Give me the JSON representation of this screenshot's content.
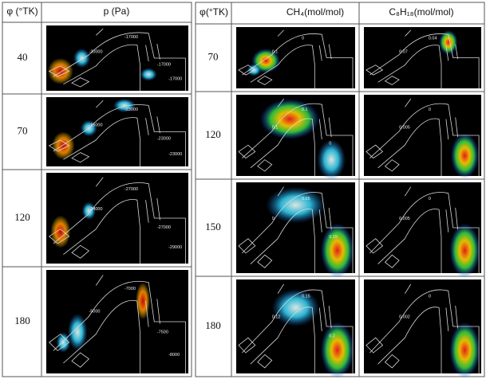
{
  "left_table": {
    "header": [
      "φ (°TK)",
      "p (Pa)"
    ],
    "rows": [
      {
        "angle": 40,
        "contour_labels": [
          "-20000",
          "-17000",
          "-17000",
          "-17000"
        ]
      },
      {
        "angle": 70,
        "contour_labels": [
          "-15000",
          "-23000",
          "-23000",
          "-23000"
        ]
      },
      {
        "angle": 120,
        "contour_labels": [
          "-24000",
          "-27000",
          "-27000",
          "-29000"
        ]
      },
      {
        "angle": 180,
        "contour_labels": [
          "-5000",
          "-7000",
          "-7500",
          "-8000"
        ]
      }
    ]
  },
  "right_table": {
    "header": [
      "φ(°TK)",
      "CH₄(mol/mol)",
      "C₈H₁₈(mol/mol)"
    ],
    "rows": [
      {
        "angle": 70,
        "ch4_labels": [
          "0.1",
          "0"
        ],
        "c8h18_labels": [
          "0.07",
          "0.04"
        ]
      },
      {
        "angle": 120,
        "ch4_labels": [
          "0.1",
          "0.1",
          "0"
        ],
        "c8h18_labels": [
          "0.005",
          "0"
        ]
      },
      {
        "angle": 150,
        "ch4_labels": [
          "0",
          "0.05",
          "0.15"
        ],
        "c8h18_labels": [
          "0.005",
          "0"
        ]
      },
      {
        "angle": 180,
        "ch4_labels": [
          "0.12",
          "0.15",
          "0.2"
        ],
        "c8h18_labels": [
          "0.002",
          "0"
        ]
      }
    ]
  }
}
